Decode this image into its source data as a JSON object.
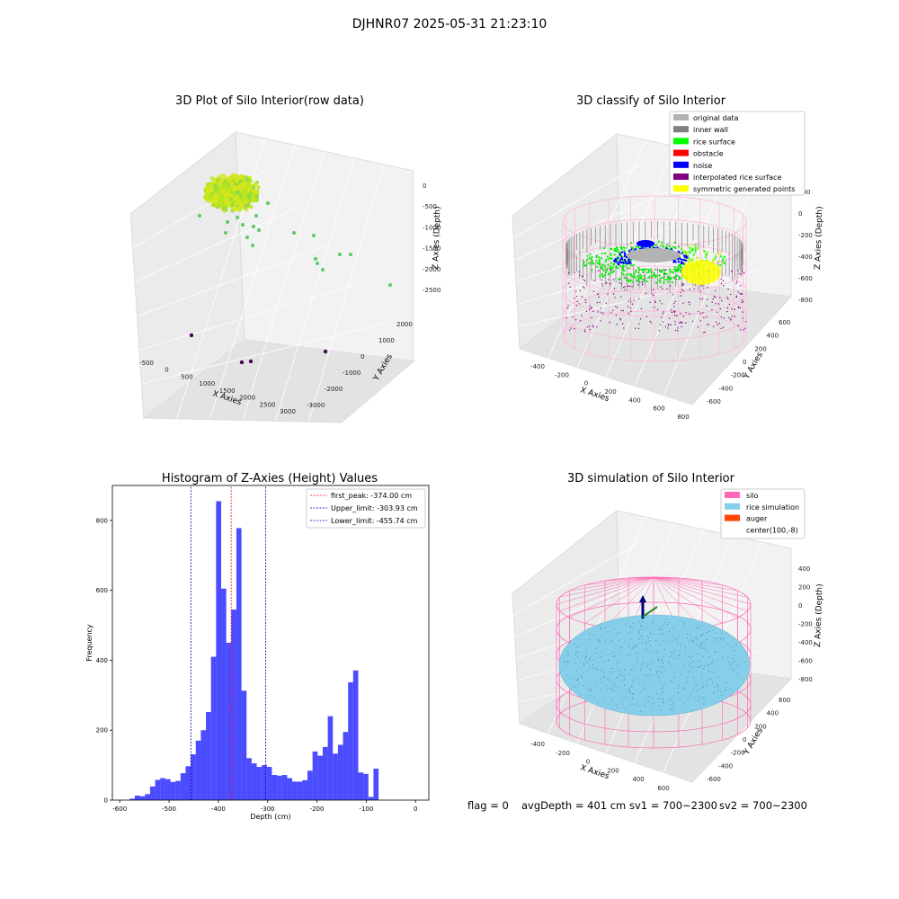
{
  "suptitle": "DJHNR07 2025-05-31 21:23:10",
  "footer": {
    "flag": "flag = 0",
    "avg": "avgDepth = 401 cm",
    "sv1": "sv1 = 700~2300",
    "sv2": "sv2 = 700~2300"
  },
  "chart_data": [
    {
      "type": "scatter",
      "title": "3D Plot of Silo Interior(row data)",
      "xlabel": "X Axies",
      "ylabel": "Y Axies",
      "zlabel": "Z Axies (Depth)",
      "x_ticks": [
        "-500",
        "0",
        "500",
        "1000",
        "1500",
        "2000",
        "2500",
        "3000"
      ],
      "y_ticks": [
        "-3000",
        "-2000",
        "-1000",
        "0",
        "1000",
        "2000"
      ],
      "z_ticks": [
        "0",
        "-500",
        "-1000",
        "-1500",
        "-2000",
        "-2500"
      ],
      "colors": {
        "dense_points": "#b5e61d",
        "mid_points": "#5ec962",
        "deep_points": "#440154",
        "far_point": "#b8b5e6"
      }
    },
    {
      "type": "scatter",
      "title": "3D classify of Silo Interior",
      "xlabel": "X Axies",
      "ylabel": "Y Axies",
      "zlabel": "Z Axies (Depth)",
      "x_ticks": [
        "-400",
        "-200",
        "0",
        "200",
        "400",
        "600",
        "800"
      ],
      "y_ticks": [
        "-600",
        "-400",
        "-200",
        "0",
        "200",
        "400",
        "600"
      ],
      "z_ticks": [
        "200",
        "0",
        "-200",
        "-400",
        "-600",
        "-800"
      ],
      "legend": [
        {
          "label": "original data",
          "color": "#b3b3b3"
        },
        {
          "label": "inner wall",
          "color": "#808080"
        },
        {
          "label": "rice surface",
          "color": "#00ff00"
        },
        {
          "label": "obstacle",
          "color": "#ff0000"
        },
        {
          "label": "noise",
          "color": "#0000ff"
        },
        {
          "label": "interpolated rice surface",
          "color": "#800080"
        },
        {
          "label": "symmetric generated points",
          "color": "#ffff00"
        }
      ]
    },
    {
      "type": "bar",
      "title": "Histogram of Z-Axies (Height) Values",
      "xlabel": "Depth (cm)",
      "ylabel": "Frequency",
      "xlim": [
        -615,
        27
      ],
      "ylim": [
        0,
        900
      ],
      "x_ticks": [
        -600,
        -500,
        -400,
        -300,
        -200,
        -100,
        0
      ],
      "y_ticks": [
        0,
        200,
        400,
        600,
        800
      ],
      "bin_start": -590,
      "bin_width": 10.3,
      "counts": [
        1,
        4,
        13,
        11,
        17,
        39,
        58,
        63,
        60,
        52,
        55,
        77,
        97,
        131,
        170,
        200,
        252,
        410,
        855,
        605,
        450,
        545,
        778,
        313,
        120,
        105,
        95,
        100,
        95,
        72,
        70,
        72,
        63,
        53,
        53,
        57,
        84,
        139,
        127,
        152,
        240,
        133,
        158,
        195,
        337,
        371,
        79,
        75,
        9,
        90
      ],
      "bar_color": "#0000ff",
      "vlines": [
        {
          "x": -374.0,
          "color": "#ff0000",
          "label": "first_peak: -374.00 cm"
        },
        {
          "x": -303.93,
          "color": "#0000aa",
          "label": "Upper_limit: -303.93 cm"
        },
        {
          "x": -455.74,
          "color": "#0000aa",
          "label": "Lower_limit: -455.74 cm"
        }
      ]
    },
    {
      "type": "scatter",
      "title": "3D simulation of Silo Interior",
      "xlabel": "X Axies",
      "ylabel": "Y Axies",
      "zlabel": "Z Axies (Depth)",
      "x_ticks": [
        "-400",
        "-200",
        "0",
        "200",
        "400",
        "600"
      ],
      "y_ticks": [
        "-600",
        "-400",
        "-200",
        "0",
        "200",
        "400",
        "600"
      ],
      "z_ticks": [
        "400",
        "200",
        "0",
        "-200",
        "-400",
        "-600",
        "-800"
      ],
      "legend": [
        {
          "label": "silo",
          "color": "#ff69b4"
        },
        {
          "label": "rice simulation",
          "color": "#87ceeb"
        },
        {
          "label": "auger",
          "color": "#ff4500"
        },
        {
          "label": "center(100,-8)",
          "color": "#ffffff"
        }
      ]
    }
  ]
}
